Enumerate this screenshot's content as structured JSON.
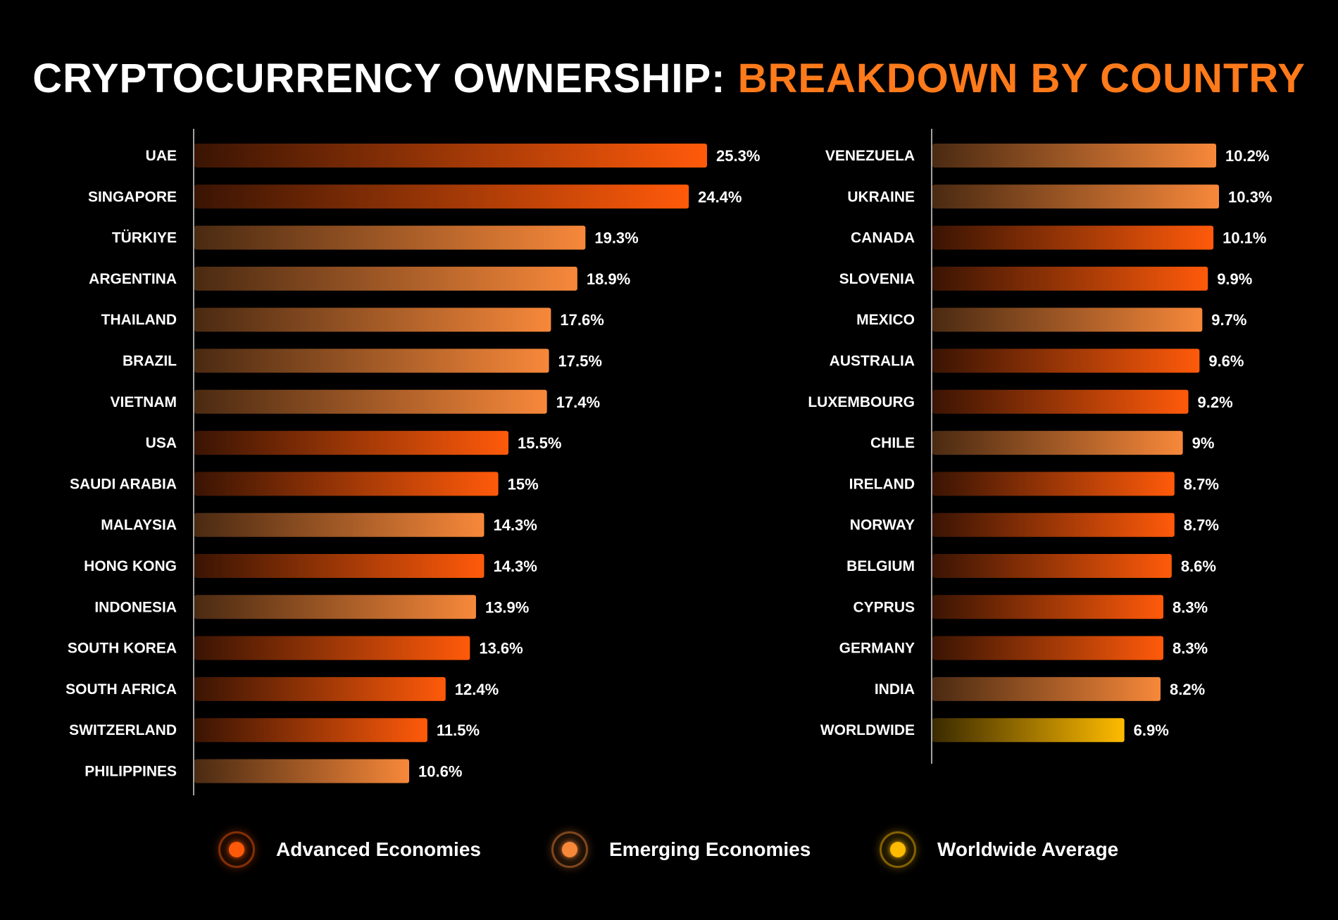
{
  "title": {
    "part1": "CRYPTOCURRENCY OWNERSHIP: ",
    "part2": "BREAKDOWN BY COUNTRY"
  },
  "colors": {
    "advanced": "#ff5a0a",
    "emerging": "#f7883a",
    "worldwide": "#ffbb00",
    "title_accent": "#ff7a1a"
  },
  "legend": [
    {
      "label": "Advanced Economies",
      "group": "advanced"
    },
    {
      "label": "Emerging Economies",
      "group": "emerging"
    },
    {
      "label": "Worldwide Average",
      "group": "worldwide"
    }
  ],
  "chart_data": [
    {
      "type": "bar",
      "orientation": "horizontal",
      "title": "Cryptocurrency Ownership: Breakdown by Country (part 1)",
      "categories": [
        "UAE",
        "SINGAPORE",
        "TÜRKIYE",
        "ARGENTINA",
        "THAILAND",
        "BRAZIL",
        "VIETNAM",
        "USA",
        "SAUDI ARABIA",
        "MALAYSIA",
        "HONG KONG",
        "INDONESIA",
        "SOUTH KOREA",
        "SOUTH AFRICA",
        "SWITZERLAND",
        "PHILIPPINES"
      ],
      "values": [
        25.3,
        24.4,
        19.3,
        18.9,
        17.6,
        17.5,
        17.4,
        15.5,
        15,
        14.3,
        14.3,
        13.9,
        13.6,
        12.4,
        11.5,
        10.6
      ],
      "labels": [
        "25.3%",
        "24.4%",
        "19.3%",
        "18.9%",
        "17.6%",
        "17.5%",
        "17.4%",
        "15.5%",
        "15%",
        "14.3%",
        "14.3%",
        "13.9%",
        "13.6%",
        "12.4%",
        "11.5%",
        "10.6%"
      ],
      "groups": [
        "advanced",
        "advanced",
        "emerging",
        "emerging",
        "emerging",
        "emerging",
        "emerging",
        "advanced",
        "advanced",
        "emerging",
        "advanced",
        "emerging",
        "advanced",
        "advanced",
        "advanced",
        "emerging"
      ],
      "xlim": [
        0,
        25.3
      ],
      "unit": "%"
    },
    {
      "type": "bar",
      "orientation": "horizontal",
      "title": "Cryptocurrency Ownership: Breakdown by Country (part 2)",
      "categories": [
        "VENEZUELA",
        "UKRAINE",
        "CANADA",
        "SLOVENIA",
        "MEXICO",
        "AUSTRALIA",
        "LUXEMBOURG",
        "CHILE",
        "IRELAND",
        "NORWAY",
        "BELGIUM",
        "CYPRUS",
        "GERMANY",
        "INDIA",
        "WORLDWIDE"
      ],
      "values": [
        10.2,
        10.3,
        10.1,
        9.9,
        9.7,
        9.6,
        9.2,
        9,
        8.7,
        8.7,
        8.6,
        8.3,
        8.3,
        8.2,
        6.9
      ],
      "labels": [
        "10.2%",
        "10.3%",
        "10.1%",
        "9.9%",
        "9.7%",
        "9.6%",
        "9.2%",
        "9%",
        "8.7%",
        "8.7%",
        "8.6%",
        "8.3%",
        "8.3%",
        "8.2%",
        "6.9%"
      ],
      "groups": [
        "emerging",
        "emerging",
        "advanced",
        "advanced",
        "emerging",
        "advanced",
        "advanced",
        "emerging",
        "advanced",
        "advanced",
        "advanced",
        "advanced",
        "advanced",
        "emerging",
        "worldwide"
      ],
      "xlim": [
        0,
        10.3
      ],
      "unit": "%"
    }
  ]
}
